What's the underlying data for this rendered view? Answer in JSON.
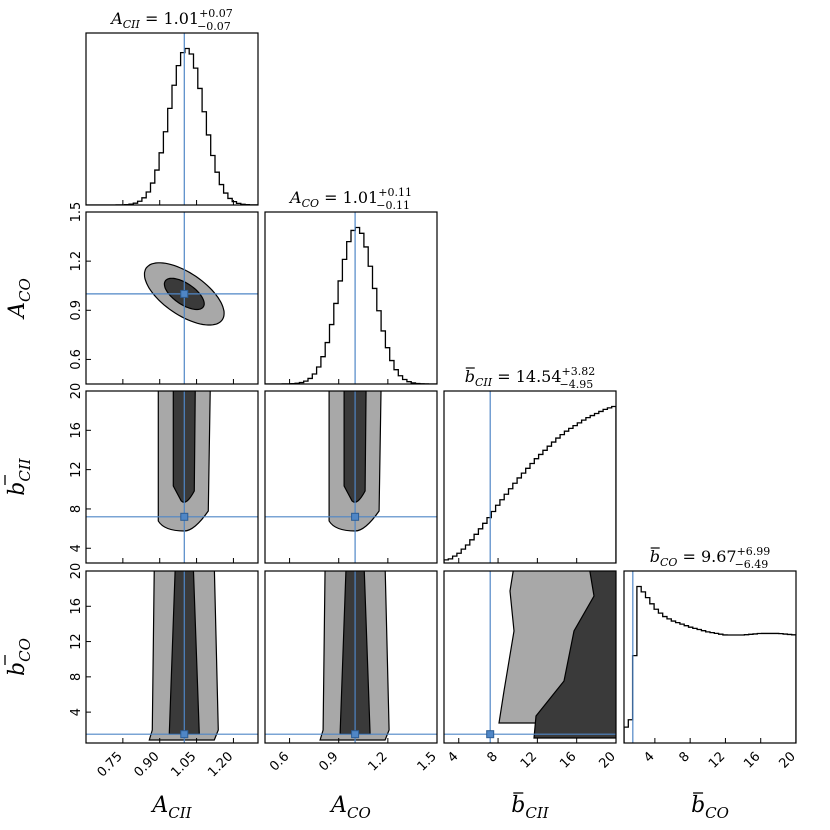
{
  "figure": {
    "description_words": "corner plot"
  },
  "chart_data": {
    "type": "corner",
    "parameters": [
      {
        "key": "A_CII",
        "symbol": "A",
        "subscript": "CII",
        "bar": false,
        "truth": 1.0,
        "range": [
          0.6,
          1.3
        ],
        "ticks": [
          "0.75",
          "0.90",
          "1.05",
          "1.20"
        ],
        "tick_values": [
          0.75,
          0.9,
          1.05,
          1.2
        ],
        "title_value": "1.01",
        "title_plus": "+0.07",
        "title_minus": "−0.07"
      },
      {
        "key": "A_CO",
        "symbol": "A",
        "subscript": "CO",
        "bar": false,
        "truth": 1.0,
        "range": [
          0.45,
          1.5
        ],
        "ticks": [
          "0.6",
          "0.9",
          "1.2",
          "1.5"
        ],
        "tick_values": [
          0.6,
          0.9,
          1.2,
          1.5
        ],
        "title_value": "1.01",
        "title_plus": "+0.11",
        "title_minus": "−0.11"
      },
      {
        "key": "b_CII",
        "symbol": "b",
        "subscript": "CII",
        "bar": true,
        "truth": 7.2,
        "range": [
          2.5,
          20
        ],
        "ticks": [
          "4",
          "8",
          "12",
          "16",
          "20"
        ],
        "tick_values": [
          4,
          8,
          12,
          16,
          20
        ],
        "title_value": "14.54",
        "title_plus": "+3.82",
        "title_minus": "−4.95"
      },
      {
        "key": "b_CO",
        "symbol": "b",
        "subscript": "CO",
        "bar": true,
        "truth": 1.5,
        "range": [
          0.5,
          20
        ],
        "ticks": [
          "4",
          "8",
          "12",
          "16",
          "20"
        ],
        "tick_values": [
          4,
          8,
          12,
          16,
          20
        ],
        "title_value": "9.67",
        "title_plus": "+6.99",
        "title_minus": "−6.49"
      }
    ],
    "histograms": [
      {
        "parameter": "A_CII",
        "shape": "gaussian",
        "mean": 1.01,
        "sigma": 0.07
      },
      {
        "parameter": "A_CO",
        "shape": "gaussian",
        "mean": 1.01,
        "sigma": 0.11
      },
      {
        "parameter": "b_CII",
        "shape": "rising",
        "x": [
          3,
          4,
          5,
          6,
          7,
          8,
          9,
          10,
          11,
          12,
          13,
          14,
          15,
          16,
          17,
          18,
          19,
          20
        ],
        "y": [
          0.02,
          0.06,
          0.12,
          0.2,
          0.28,
          0.37,
          0.45,
          0.53,
          0.6,
          0.67,
          0.73,
          0.79,
          0.84,
          0.88,
          0.92,
          0.95,
          0.98,
          1.0
        ]
      },
      {
        "parameter": "b_CO",
        "shape": "peak-then-flat",
        "x": [
          1,
          1.5,
          2,
          3,
          4,
          5,
          6,
          8,
          10,
          12,
          14,
          16,
          18,
          20
        ],
        "y": [
          0.1,
          0.2,
          1.0,
          0.93,
          0.85,
          0.8,
          0.77,
          0.73,
          0.7,
          0.68,
          0.68,
          0.69,
          0.69,
          0.68
        ]
      }
    ],
    "contour_levels": [
      "1-sigma (dark)",
      "2-sigma (light)"
    ],
    "colors": {
      "truth_line": "#4f86c6",
      "contour_inner": "#3a3a3a",
      "contour_outer": "#a8a8a8",
      "outline": "#000000"
    }
  }
}
